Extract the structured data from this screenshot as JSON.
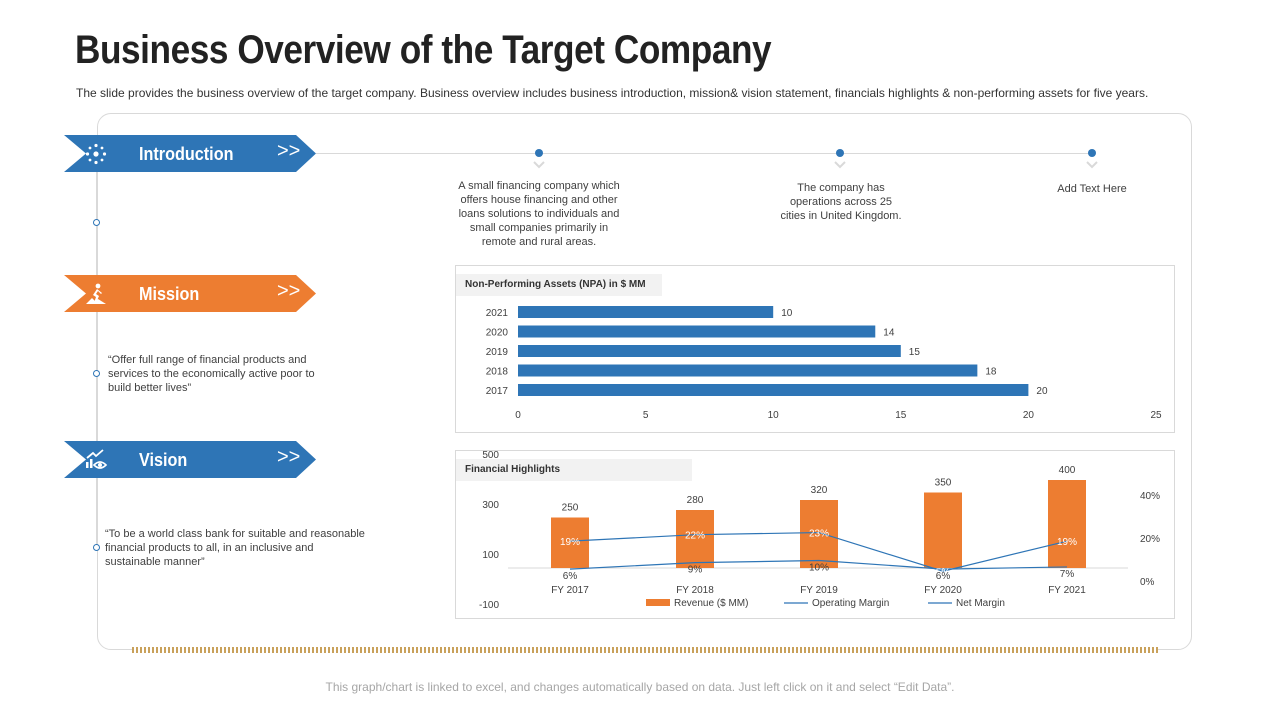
{
  "title": "Business Overview of the Target Company",
  "subtitle": "The slide provides the business overview of the target company. Business overview includes business introduction, mission& vision statement, financials highlights & non-performing assets for five years.",
  "sections": {
    "introduction": {
      "label": "Introduction",
      "chevron": ">>",
      "icon": "network-icon",
      "color": "#2e75b6"
    },
    "mission": {
      "label": "Mission",
      "chevron": ">>",
      "icon": "climber-icon",
      "color": "#ed7d31",
      "text": "“Offer full range of financial products and services to the economically active poor to build   better lives”"
    },
    "vision": {
      "label": "Vision",
      "chevron": ">>",
      "icon": "growth-eye-icon",
      "color": "#2e75b6",
      "text": "“To be a world class bank for suitable and reasonable financial products to all, in an inclusive and sustainable manner”"
    }
  },
  "timeline": [
    {
      "text": "A small financing company which offers house financing and other loans solutions to individuals and small companies primarily in remote and rural areas."
    },
    {
      "text": "The company has operations across 25 cities in United Kingdom."
    },
    {
      "text": "Add Text Here"
    }
  ],
  "chart_data": [
    {
      "type": "bar",
      "orientation": "horizontal",
      "title": "Non-Performing Assets (NPA) in $ MM",
      "categories": [
        "2021",
        "2020",
        "2019",
        "2018",
        "2017"
      ],
      "values": [
        10,
        14,
        15,
        18,
        20
      ],
      "xlim": [
        0,
        25
      ],
      "xticks": [
        0,
        5,
        10,
        15,
        20,
        25
      ],
      "color": "#2e75b6"
    },
    {
      "type": "bar",
      "title": "Financial Highlights",
      "categories": [
        "FY 2017",
        "FY 2018",
        "FY 2019",
        "FY 2020",
        "FY 2021"
      ],
      "series": [
        {
          "name": "Revenue ($ MM)",
          "type": "bar",
          "axis": "left",
          "values": [
            250,
            280,
            320,
            350,
            400
          ],
          "color": "#ed7d31"
        },
        {
          "name": "Operating Margin",
          "type": "line",
          "axis": "right",
          "values": [
            19,
            22,
            23,
            5,
            19
          ],
          "color": "#2e75b6"
        },
        {
          "name": "Net Margin",
          "type": "line",
          "axis": "right",
          "values": [
            6,
            9,
            10,
            6,
            7
          ],
          "color": "#2e75b6"
        }
      ],
      "left_axis": {
        "range": [
          -100,
          500
        ],
        "ticks": [
          "500",
          "300",
          "100",
          "-100"
        ]
      },
      "right_axis": {
        "range": [
          0,
          40
        ],
        "ticks": [
          "40%",
          "20%",
          "0%"
        ]
      },
      "legend_position": "bottom"
    }
  ],
  "footer": "This graph/chart is linked to excel, and changes automatically based on data. Just left click on it and select “Edit Data”."
}
